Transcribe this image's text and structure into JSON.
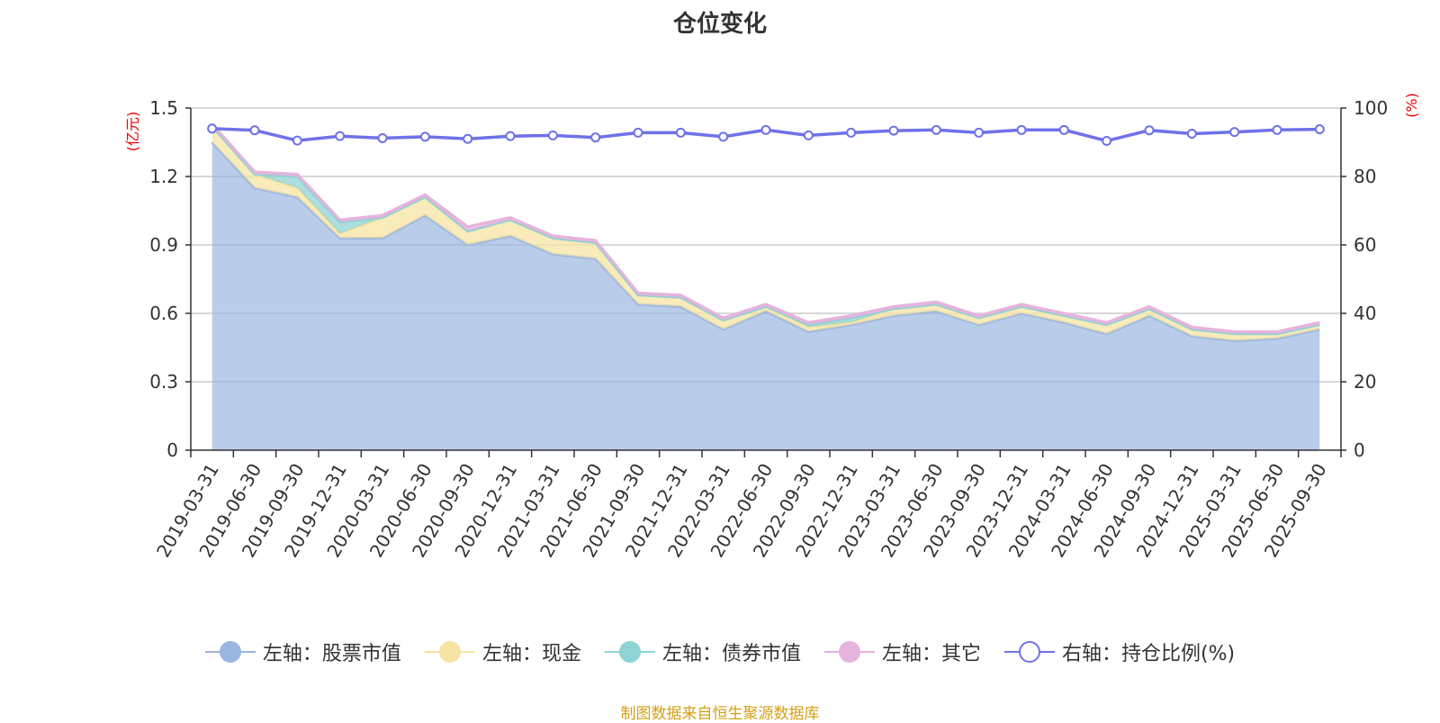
{
  "chart_data": {
    "type": "area",
    "title": "仓位变化",
    "x": [
      "2019-03-31",
      "2019-06-30",
      "2019-09-30",
      "2019-12-31",
      "2020-03-31",
      "2020-06-30",
      "2020-09-30",
      "2020-12-31",
      "2021-03-31",
      "2021-06-30",
      "2021-09-30",
      "2021-12-31",
      "2022-03-31",
      "2022-06-30",
      "2022-09-30",
      "2022-12-31",
      "2023-03-31",
      "2023-06-30",
      "2023-09-30",
      "2023-12-31",
      "2024-03-31",
      "2024-06-30",
      "2024-09-30",
      "2024-12-31",
      "2025-03-31",
      "2025-06-30",
      "2025-09-30"
    ],
    "left_axis": {
      "unit": "(亿元)",
      "ylim": [
        0,
        1.5
      ],
      "ticks": [
        "0",
        "0.3",
        "0.6",
        "0.9",
        "1.2",
        "1.5"
      ]
    },
    "right_axis": {
      "unit": "(%)",
      "ylim": [
        0,
        100
      ],
      "ticks": [
        "0",
        "20",
        "40",
        "60",
        "80",
        "100"
      ]
    },
    "grid": true,
    "stacked": true,
    "series": [
      {
        "name": "左轴：股票市值",
        "axis": "left",
        "color": "#9bb6e0",
        "values": [
          1.35,
          1.15,
          1.11,
          0.93,
          0.93,
          1.03,
          0.9,
          0.94,
          0.86,
          0.84,
          0.64,
          0.63,
          0.53,
          0.61,
          0.52,
          0.55,
          0.59,
          0.61,
          0.55,
          0.6,
          0.56,
          0.51,
          0.59,
          0.5,
          0.48,
          0.49,
          0.53
        ]
      },
      {
        "name": "左轴：现金",
        "axis": "left",
        "color": "#f7e4a3",
        "values": [
          0.07,
          0.06,
          0.04,
          0.02,
          0.09,
          0.08,
          0.06,
          0.07,
          0.07,
          0.07,
          0.04,
          0.04,
          0.04,
          0.02,
          0.02,
          0.01,
          0.03,
          0.03,
          0.03,
          0.03,
          0.03,
          0.04,
          0.03,
          0.03,
          0.03,
          0.02,
          0.02
        ]
      },
      {
        "name": "左轴：债券市值",
        "axis": "left",
        "color": "#8fd3d3",
        "values": [
          0,
          0,
          0.05,
          0.05,
          0,
          0,
          0,
          0,
          0,
          0,
          0,
          0,
          0,
          0,
          0.01,
          0.02,
          0,
          0,
          0,
          0,
          0,
          0,
          0,
          0,
          0,
          0,
          0
        ]
      },
      {
        "name": "左轴：其它",
        "axis": "left",
        "color": "#e6b3dc",
        "values": [
          0.01,
          0.01,
          0.01,
          0.01,
          0.01,
          0.01,
          0.02,
          0.01,
          0.01,
          0.01,
          0.01,
          0.01,
          0.01,
          0.01,
          0.01,
          0.01,
          0.01,
          0.01,
          0.01,
          0.01,
          0.01,
          0.01,
          0.01,
          0.01,
          0.01,
          0.01,
          0.01
        ]
      },
      {
        "name": "右轴：持仓比例(%)",
        "axis": "right",
        "color": "#6e72e8",
        "values": [
          94.0,
          93.5,
          90.5,
          91.8,
          91.2,
          91.6,
          91.0,
          91.8,
          92.0,
          91.4,
          92.8,
          92.8,
          91.6,
          93.6,
          92.0,
          92.8,
          93.4,
          93.6,
          92.8,
          93.6,
          93.6,
          90.4,
          93.5,
          92.5,
          93.0,
          93.6,
          93.8
        ]
      }
    ]
  },
  "legend": [
    {
      "label": "左轴：股票市值",
      "color": "#9bb6e0",
      "marker": "filled"
    },
    {
      "label": "左轴：现金",
      "color": "#f7e4a3",
      "marker": "filled"
    },
    {
      "label": "左轴：债券市值",
      "color": "#8fd3d3",
      "marker": "filled"
    },
    {
      "label": "左轴：其它",
      "color": "#e6b3dc",
      "marker": "filled"
    },
    {
      "label": "右轴：持仓比例(%)",
      "color": "#6e72e8",
      "marker": "hollow"
    }
  ],
  "source_note": "制图数据来自恒生聚源数据库"
}
